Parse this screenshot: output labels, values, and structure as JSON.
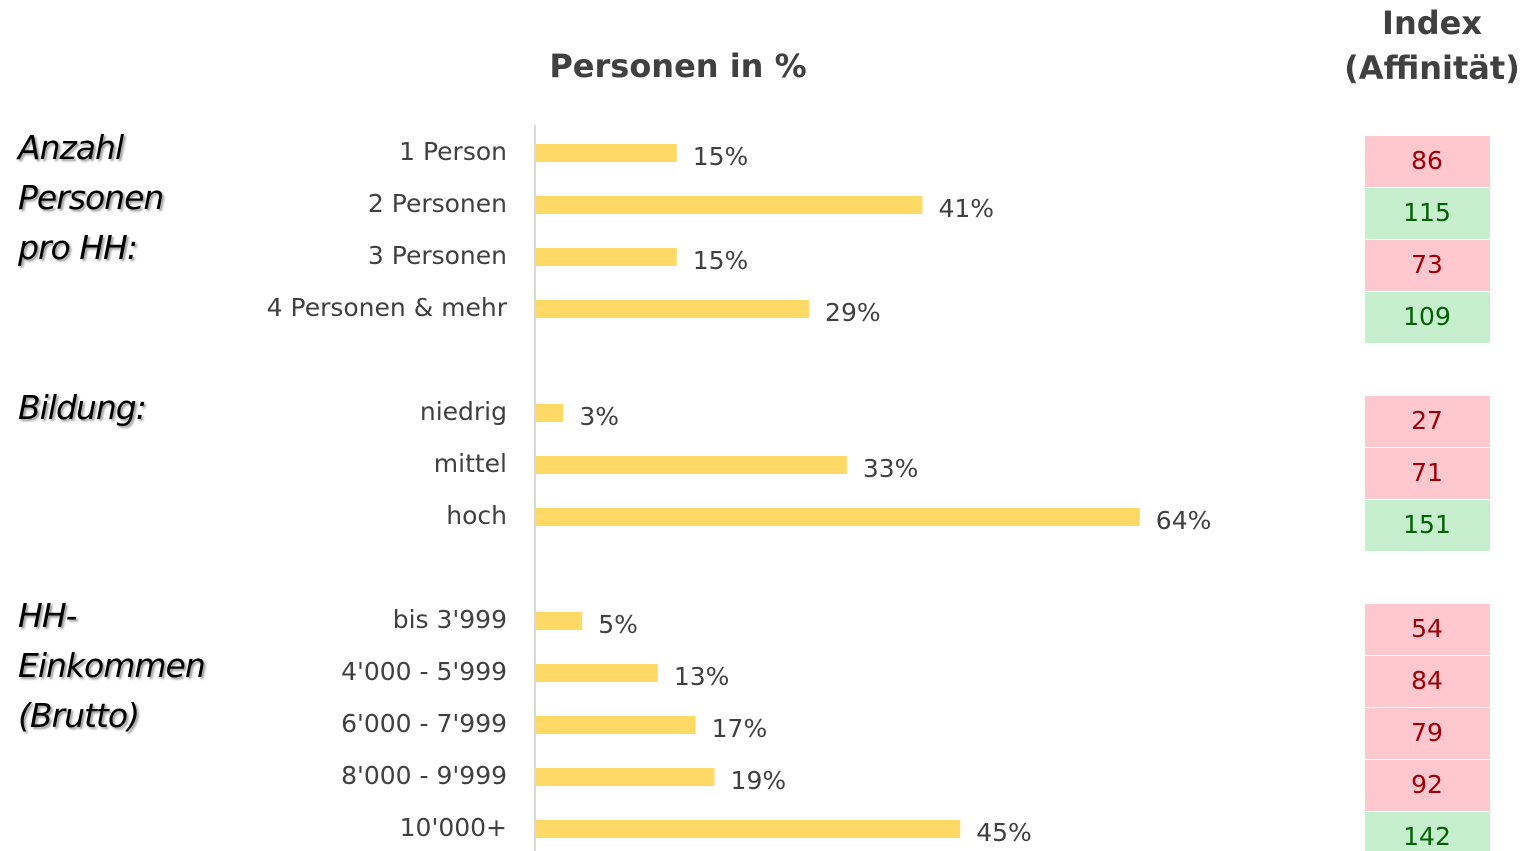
{
  "chart_data": {
    "type": "bar",
    "title": "Personen in %",
    "index_title": [
      "Index",
      "(Affinität)"
    ],
    "color": "#ffd966",
    "xlim": [
      0,
      100
    ],
    "index_threshold": 100,
    "index_low": {
      "fill": "#ffc7ce",
      "text": "#9c0006"
    },
    "index_high": {
      "fill": "#c6efce",
      "text": "#006100"
    },
    "groups": [
      {
        "name": "Anzahl Personen pro HH:",
        "categories": [
          "1 Person",
          "2 Personen",
          "3 Personen",
          "4 Personen & mehr"
        ],
        "values": [
          15,
          41,
          15,
          29
        ],
        "value_labels": [
          "15%",
          "41%",
          "15%",
          "29%"
        ],
        "index": [
          86,
          115,
          73,
          109
        ]
      },
      {
        "name": "Bildung:",
        "categories": [
          "niedrig",
          "mittel",
          "hoch"
        ],
        "values": [
          3,
          33,
          64
        ],
        "value_labels": [
          "3%",
          "33%",
          "64%"
        ],
        "index": [
          27,
          71,
          151
        ]
      },
      {
        "name": "HH-Einkommen (Brutto)",
        "categories": [
          "bis 3'999",
          "4'000 - 5'999",
          "6'000 - 7'999",
          "8'000 - 9'999",
          "10'000+"
        ],
        "values": [
          5,
          13,
          17,
          19,
          45
        ],
        "value_labels": [
          "5%",
          "13%",
          "17%",
          "19%",
          "45%"
        ],
        "index": [
          54,
          84,
          79,
          92,
          142
        ]
      }
    ]
  }
}
